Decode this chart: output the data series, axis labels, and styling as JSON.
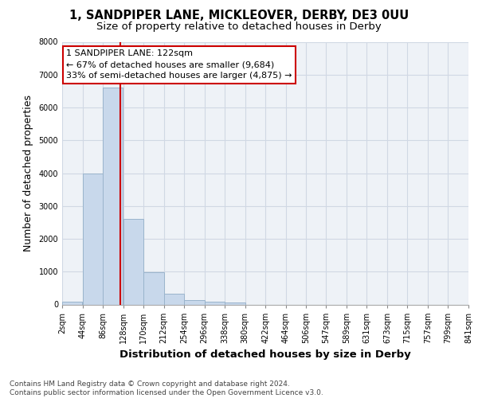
{
  "title": "1, SANDPIPER LANE, MICKLEOVER, DERBY, DE3 0UU",
  "subtitle": "Size of property relative to detached houses in Derby",
  "xlabel": "Distribution of detached houses by size in Derby",
  "ylabel": "Number of detached properties",
  "bin_edges": [
    2,
    44,
    86,
    128,
    170,
    212,
    254,
    296,
    338,
    380,
    422,
    464,
    506,
    547,
    589,
    631,
    673,
    715,
    757,
    799,
    841
  ],
  "bar_heights": [
    75,
    4000,
    6600,
    2600,
    975,
    330,
    130,
    75,
    50,
    0,
    0,
    0,
    0,
    0,
    0,
    0,
    0,
    0,
    0,
    0
  ],
  "bar_color": "#c8d8eb",
  "bar_edge_color": "#9ab4cc",
  "tick_labels": [
    "2sqm",
    "44sqm",
    "86sqm",
    "128sqm",
    "170sqm",
    "212sqm",
    "254sqm",
    "296sqm",
    "338sqm",
    "380sqm",
    "422sqm",
    "464sqm",
    "506sqm",
    "547sqm",
    "589sqm",
    "631sqm",
    "673sqm",
    "715sqm",
    "757sqm",
    "799sqm",
    "841sqm"
  ],
  "ylim": [
    0,
    8000
  ],
  "yticks": [
    0,
    1000,
    2000,
    3000,
    4000,
    5000,
    6000,
    7000,
    8000
  ],
  "property_line_x": 122,
  "annotation_title": "1 SANDPIPER LANE: 122sqm",
  "annotation_line2": "← 67% of detached houses are smaller (9,684)",
  "annotation_line3": "33% of semi-detached houses are larger (4,875) →",
  "annotation_box_color": "#ffffff",
  "annotation_box_edge": "#cc0000",
  "property_line_color": "#cc0000",
  "footer_line1": "Contains HM Land Registry data © Crown copyright and database right 2024.",
  "footer_line2": "Contains public sector information licensed under the Open Government Licence v3.0.",
  "bg_color": "#ffffff",
  "plot_bg_color": "#eef2f7",
  "grid_color": "#d0d8e4",
  "title_fontsize": 10.5,
  "subtitle_fontsize": 9.5,
  "axis_label_fontsize": 9,
  "tick_fontsize": 7,
  "footer_fontsize": 6.5,
  "annotation_fontsize": 8
}
